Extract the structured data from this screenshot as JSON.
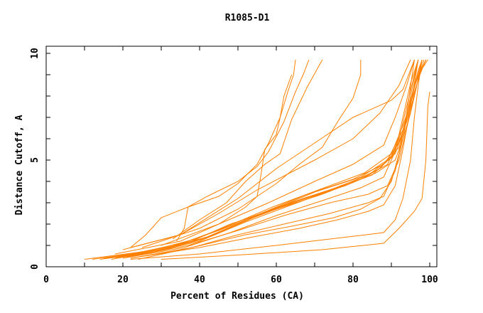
{
  "chart_data": {
    "type": "line",
    "title": "R1085-D1",
    "xlabel": "Percent of Residues (CA)",
    "ylabel": "Distance Cutoff, A",
    "xlim": [
      0,
      100
    ],
    "ylim": [
      0,
      10
    ],
    "xticks": [
      "0",
      "20",
      "40",
      "60",
      "80",
      "100"
    ],
    "yticks": [
      "0",
      "5",
      "10"
    ],
    "grid": false,
    "line_color": "#ff8000",
    "series": [
      {
        "points": [
          [
            22,
            0.9
          ],
          [
            26,
            1.5
          ],
          [
            30,
            2.3
          ],
          [
            37,
            2.8
          ],
          [
            45,
            3.3
          ],
          [
            50,
            3.9
          ],
          [
            55,
            4.8
          ],
          [
            58,
            5.8
          ],
          [
            61,
            7.0
          ],
          [
            63,
            8.2
          ],
          [
            64.5,
            9.0
          ],
          [
            65,
            9.7
          ]
        ]
      },
      {
        "points": [
          [
            34,
            1.2
          ],
          [
            36,
            1.8
          ],
          [
            37,
            2.8
          ],
          [
            42,
            3.3
          ],
          [
            50,
            4.0
          ],
          [
            55,
            4.7
          ],
          [
            58,
            5.4
          ],
          [
            62,
            6.8
          ],
          [
            65,
            8.2
          ],
          [
            67,
            9.0
          ],
          [
            68.5,
            9.7
          ]
        ]
      },
      {
        "points": [
          [
            33,
            1.3
          ],
          [
            40,
            2.2
          ],
          [
            47,
            3.0
          ],
          [
            52,
            4.0
          ],
          [
            57,
            4.8
          ],
          [
            61,
            5.3
          ],
          [
            64,
            6.9
          ],
          [
            68,
            8.4
          ],
          [
            72,
            9.7
          ]
        ]
      },
      {
        "points": [
          [
            30,
            1.0
          ],
          [
            45,
            2.0
          ],
          [
            52,
            2.8
          ],
          [
            55,
            3.3
          ],
          [
            56,
            4.3
          ],
          [
            57,
            5.5
          ],
          [
            60,
            6.2
          ],
          [
            61,
            7.0
          ],
          [
            62,
            8.0
          ],
          [
            64,
            9.0
          ]
        ]
      },
      {
        "points": [
          [
            25,
            0.9
          ],
          [
            40,
            1.8
          ],
          [
            50,
            2.7
          ],
          [
            60,
            3.9
          ],
          [
            66,
            4.8
          ],
          [
            72,
            5.6
          ],
          [
            76,
            6.8
          ],
          [
            80,
            7.9
          ],
          [
            82,
            9.0
          ],
          [
            82,
            9.7
          ]
        ]
      },
      {
        "points": [
          [
            22,
            0.9
          ],
          [
            35,
            1.5
          ],
          [
            50,
            3.2
          ],
          [
            60,
            4.6
          ],
          [
            70,
            5.8
          ],
          [
            80,
            7.0
          ],
          [
            90,
            7.8
          ],
          [
            93,
            8.3
          ],
          [
            96,
            9.7
          ]
        ]
      },
      {
        "points": [
          [
            20,
            0.8
          ],
          [
            35,
            1.5
          ],
          [
            45,
            2.5
          ],
          [
            55,
            3.6
          ],
          [
            70,
            5.0
          ],
          [
            80,
            6.0
          ],
          [
            87,
            7.2
          ],
          [
            92,
            8.5
          ],
          [
            95,
            9.7
          ]
        ]
      },
      {
        "points": [
          [
            18,
            0.6
          ],
          [
            35,
            1.2
          ],
          [
            45,
            2.0
          ],
          [
            58,
            3.0
          ],
          [
            70,
            4.0
          ],
          [
            80,
            4.8
          ],
          [
            88,
            5.7
          ],
          [
            91,
            7.0
          ],
          [
            94,
            8.5
          ],
          [
            96,
            9.7
          ]
        ]
      },
      {
        "points": [
          [
            10,
            0.35
          ],
          [
            25,
            0.7
          ],
          [
            38,
            1.2
          ],
          [
            48,
            2.0
          ],
          [
            60,
            2.7
          ],
          [
            72,
            3.4
          ],
          [
            82,
            4.1
          ],
          [
            89,
            4.8
          ],
          [
            92,
            6.0
          ],
          [
            94,
            7.5
          ],
          [
            96,
            9.0
          ],
          [
            97,
            9.7
          ]
        ]
      },
      {
        "points": [
          [
            12,
            0.35
          ],
          [
            26,
            0.7
          ],
          [
            39,
            1.3
          ],
          [
            50,
            2.1
          ],
          [
            62,
            2.9
          ],
          [
            74,
            3.6
          ],
          [
            84,
            4.3
          ],
          [
            90,
            5.1
          ],
          [
            93,
            6.3
          ],
          [
            95,
            7.8
          ],
          [
            97,
            9.2
          ],
          [
            98,
            9.7
          ]
        ]
      },
      {
        "points": [
          [
            14,
            0.35
          ],
          [
            27,
            0.65
          ],
          [
            40,
            1.2
          ],
          [
            52,
            2.1
          ],
          [
            64,
            2.9
          ],
          [
            76,
            3.7
          ],
          [
            85,
            4.3
          ],
          [
            91,
            5.3
          ],
          [
            94,
            6.8
          ],
          [
            96,
            8.4
          ],
          [
            98,
            9.7
          ]
        ]
      },
      {
        "points": [
          [
            15,
            0.4
          ],
          [
            28,
            0.7
          ],
          [
            41,
            1.3
          ],
          [
            54,
            2.3
          ],
          [
            66,
            3.1
          ],
          [
            78,
            3.8
          ],
          [
            86,
            4.4
          ],
          [
            91,
            5.0
          ],
          [
            93,
            6.0
          ],
          [
            95,
            7.2
          ],
          [
            97,
            8.8
          ],
          [
            98.5,
            9.7
          ]
        ]
      },
      {
        "points": [
          [
            16,
            0.4
          ],
          [
            30,
            0.8
          ],
          [
            42,
            1.4
          ],
          [
            55,
            2.4
          ],
          [
            67,
            3.2
          ],
          [
            79,
            3.9
          ],
          [
            87,
            4.6
          ],
          [
            92,
            5.6
          ],
          [
            94,
            7.0
          ],
          [
            96,
            8.5
          ],
          [
            99,
            9.7
          ]
        ]
      },
      {
        "points": [
          [
            17,
            0.35
          ],
          [
            31,
            0.8
          ],
          [
            44,
            1.5
          ],
          [
            56,
            2.5
          ],
          [
            68,
            3.4
          ],
          [
            80,
            4.1
          ],
          [
            88,
            4.8
          ],
          [
            92,
            5.8
          ],
          [
            95,
            7.4
          ],
          [
            97,
            8.8
          ],
          [
            99,
            9.7
          ]
        ]
      },
      {
        "points": [
          [
            18,
            0.4
          ],
          [
            32,
            0.9
          ],
          [
            45,
            1.7
          ],
          [
            58,
            2.6
          ],
          [
            70,
            3.5
          ],
          [
            82,
            4.2
          ],
          [
            89,
            5.0
          ],
          [
            93,
            6.4
          ],
          [
            95,
            7.8
          ],
          [
            97,
            9.0
          ],
          [
            99.5,
            9.7
          ]
        ]
      },
      {
        "points": [
          [
            19,
            0.5
          ],
          [
            34,
            1.0
          ],
          [
            46,
            1.8
          ],
          [
            59,
            2.8
          ],
          [
            71,
            3.6
          ],
          [
            83,
            4.4
          ],
          [
            90,
            5.3
          ],
          [
            93,
            6.6
          ],
          [
            96,
            8.2
          ],
          [
            98,
            9.3
          ],
          [
            99,
            9.7
          ]
        ]
      },
      {
        "points": [
          [
            20,
            0.4
          ],
          [
            36,
            0.9
          ],
          [
            48,
            1.6
          ],
          [
            60,
            2.4
          ],
          [
            72,
            3.1
          ],
          [
            82,
            3.7
          ],
          [
            88,
            4.2
          ],
          [
            91,
            5.4
          ],
          [
            93,
            7.0
          ],
          [
            95,
            8.6
          ],
          [
            97,
            9.7
          ]
        ]
      },
      {
        "points": [
          [
            21,
            0.45
          ],
          [
            37,
            1.0
          ],
          [
            50,
            1.7
          ],
          [
            62,
            2.4
          ],
          [
            74,
            3.0
          ],
          [
            84,
            3.4
          ],
          [
            89,
            3.8
          ],
          [
            92,
            5.0
          ],
          [
            94,
            6.5
          ],
          [
            96,
            8.0
          ],
          [
            98,
            9.7
          ]
        ]
      },
      {
        "points": [
          [
            22,
            0.4
          ],
          [
            38,
            0.9
          ],
          [
            50,
            1.5
          ],
          [
            62,
            2.0
          ],
          [
            74,
            2.5
          ],
          [
            84,
            3.0
          ],
          [
            88,
            3.3
          ],
          [
            91,
            4.5
          ],
          [
            93,
            6.0
          ],
          [
            95,
            8.0
          ],
          [
            97,
            9.7
          ]
        ]
      },
      {
        "points": [
          [
            24,
            0.35
          ],
          [
            38,
            0.9
          ],
          [
            52,
            1.5
          ],
          [
            64,
            1.9
          ],
          [
            75,
            2.3
          ],
          [
            82,
            2.7
          ],
          [
            87,
            3.2
          ],
          [
            90,
            4.0
          ],
          [
            92,
            5.3
          ],
          [
            94,
            7.2
          ],
          [
            96,
            9.7
          ]
        ]
      },
      {
        "points": [
          [
            22,
            0.4
          ],
          [
            40,
            0.9
          ],
          [
            54,
            1.4
          ],
          [
            66,
            1.8
          ],
          [
            76,
            2.2
          ],
          [
            84,
            2.6
          ],
          [
            88,
            2.9
          ],
          [
            91,
            3.8
          ],
          [
            93,
            5.5
          ],
          [
            95,
            7.5
          ],
          [
            97,
            9.7
          ]
        ]
      },
      {
        "points": [
          [
            22,
            0.35
          ],
          [
            40,
            0.6
          ],
          [
            60,
            1.0
          ],
          [
            74,
            1.3
          ],
          [
            88,
            1.6
          ],
          [
            91,
            2.2
          ],
          [
            93,
            3.2
          ],
          [
            95,
            5.0
          ],
          [
            96,
            7.0
          ],
          [
            97,
            8.5
          ],
          [
            98,
            9.7
          ]
        ]
      },
      {
        "points": [
          [
            30,
            0.35
          ],
          [
            50,
            0.55
          ],
          [
            72,
            0.8
          ],
          [
            88,
            1.1
          ],
          [
            92,
            1.8
          ],
          [
            96,
            2.6
          ],
          [
            98,
            3.2
          ],
          [
            99,
            5.0
          ],
          [
            99.5,
            7.5
          ],
          [
            100,
            8.2
          ]
        ]
      }
    ]
  }
}
